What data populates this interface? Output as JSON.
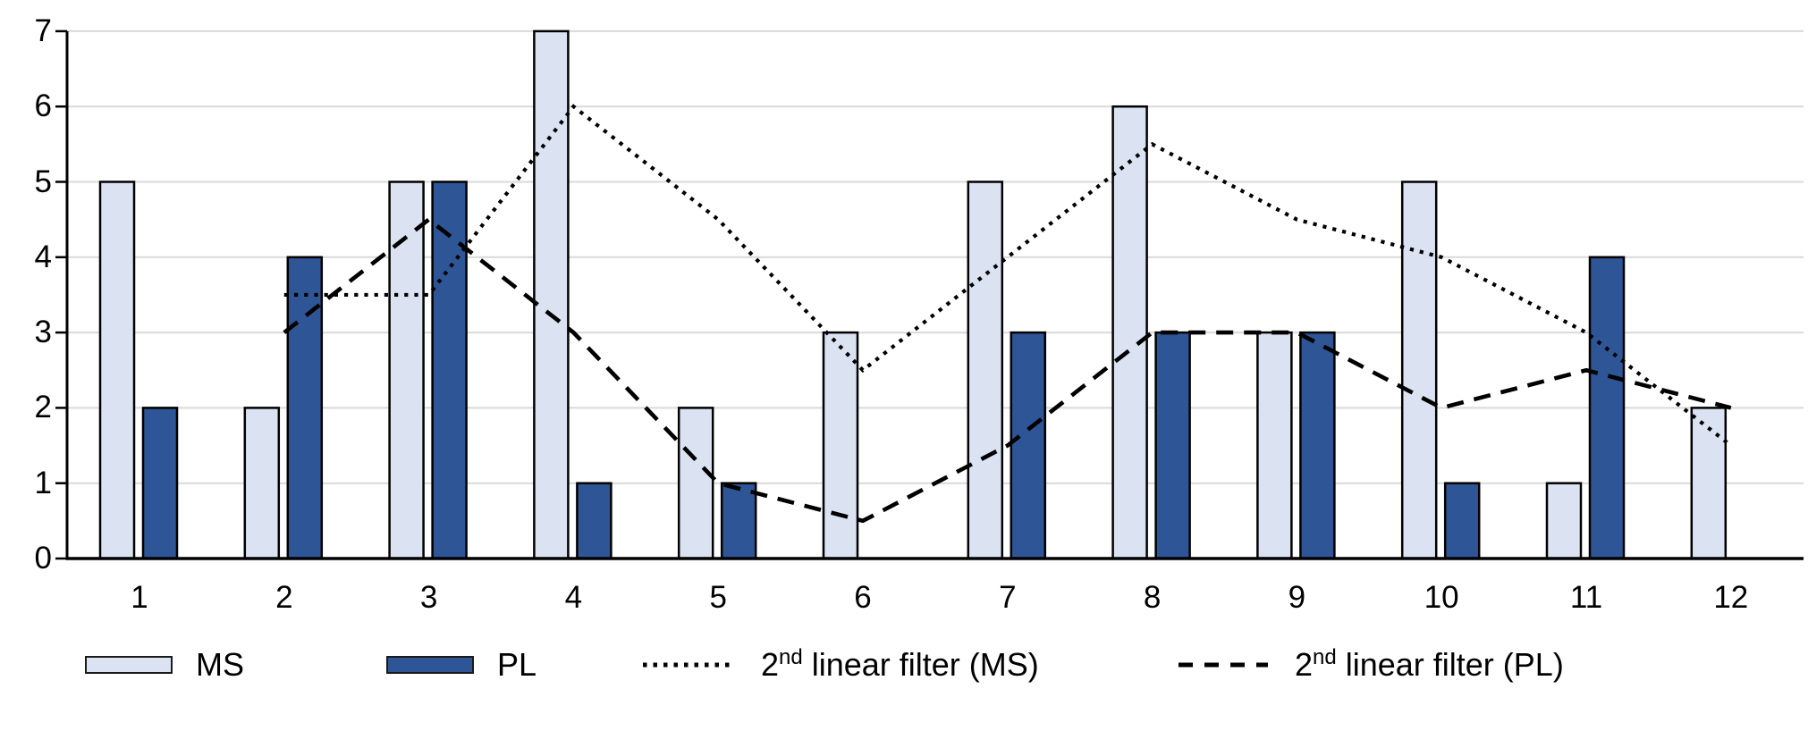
{
  "chart_data": {
    "type": "bar+line combo",
    "title": "",
    "xlabel": "",
    "ylabel": "",
    "categories": [
      "1",
      "2",
      "3",
      "4",
      "5",
      "6",
      "7",
      "8",
      "9",
      "10",
      "11",
      "12"
    ],
    "yticks": [
      "0",
      "1",
      "2",
      "3",
      "4",
      "5",
      "6",
      "7"
    ],
    "ylim": [
      0,
      7
    ],
    "grid": true,
    "legend_position": "bottom",
    "series": [
      {
        "name": "MS",
        "type": "bar",
        "fill": "#dbe3f3",
        "stroke": "#000000",
        "values": [
          5,
          2,
          5,
          7,
          2,
          3,
          5,
          6,
          3,
          5,
          1,
          2
        ]
      },
      {
        "name": "PL",
        "type": "bar",
        "fill": "#2e5596",
        "stroke": "#000000",
        "values": [
          2,
          4,
          5,
          1,
          1,
          0,
          3,
          3,
          3,
          1,
          4,
          0
        ]
      },
      {
        "name": "2nd linear filter (MS)",
        "type": "line",
        "dash": "dotted",
        "color": "#000000",
        "x": [
          2,
          3,
          4,
          5,
          6,
          7,
          8,
          9,
          10,
          11,
          12
        ],
        "values": [
          3.5,
          3.5,
          6,
          4.5,
          2.5,
          4,
          5.5,
          4.5,
          4,
          3,
          1.5
        ]
      },
      {
        "name": "2nd linear filter (PL)",
        "type": "line",
        "dash": "dashed",
        "color": "#000000",
        "x": [
          2,
          3,
          4,
          5,
          6,
          7,
          8,
          9,
          10,
          11,
          12
        ],
        "values": [
          3,
          4.5,
          3,
          1,
          0.5,
          1.5,
          3,
          3,
          2,
          2.5,
          2
        ]
      }
    ]
  },
  "colors": {
    "ms_fill": "#dbe3f3",
    "pl_fill": "#2e5596",
    "bar_border": "#000000",
    "gridline": "#d9d9d9",
    "axis": "#000000",
    "text": "#000000",
    "line": "#000000"
  },
  "legend": {
    "items": [
      {
        "label": "MS"
      },
      {
        "label": "PL"
      },
      {
        "pre": "2",
        "sup": "nd",
        "rest": " linear filter (MS)"
      },
      {
        "pre": "2",
        "sup": "nd",
        "rest": " linear filter (PL)"
      }
    ]
  }
}
